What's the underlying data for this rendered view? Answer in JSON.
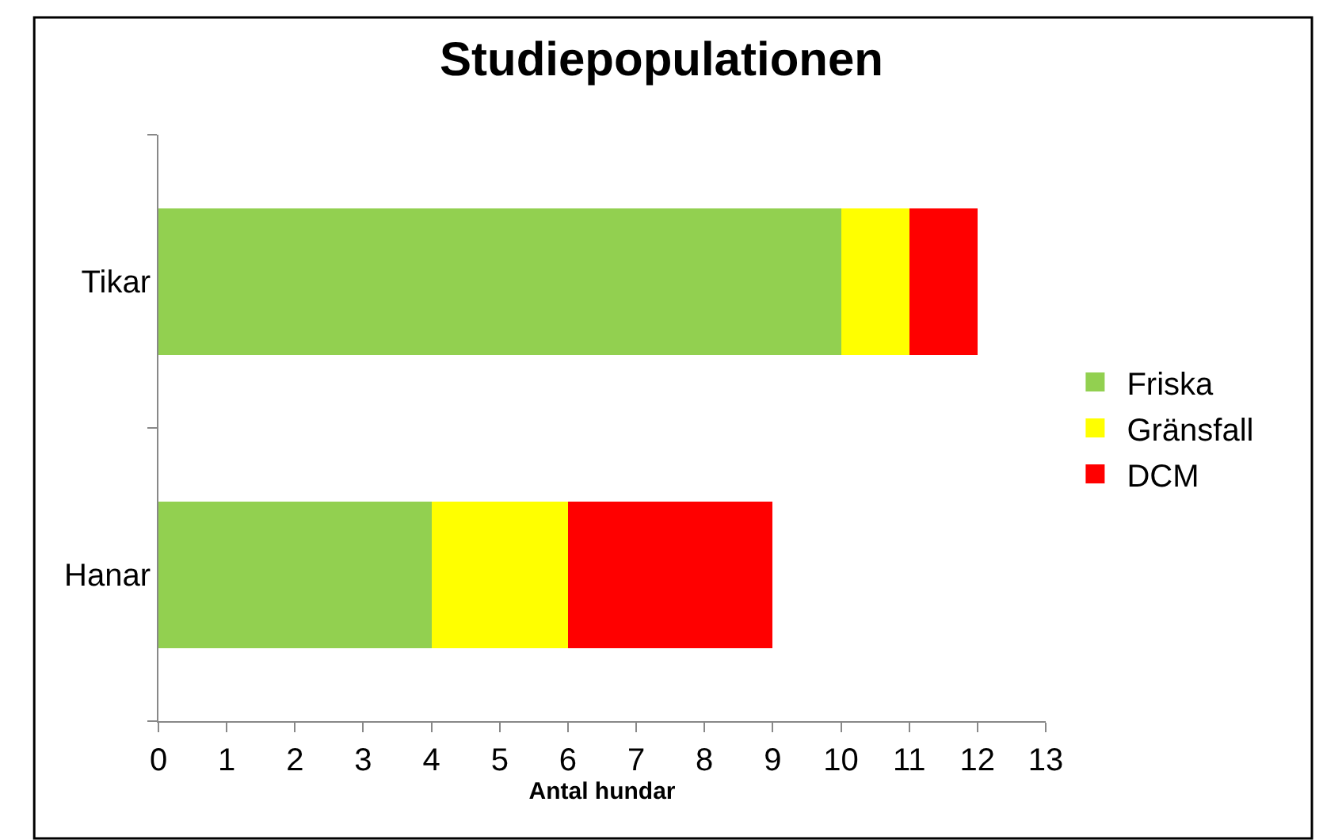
{
  "chart_data": {
    "type": "bar",
    "orientation": "horizontal",
    "stacked": true,
    "title": "Studiepopulationen",
    "xlabel": "Antal hundar",
    "categories": [
      "Tikar",
      "Hanar"
    ],
    "series": [
      {
        "name": "Friska",
        "color": "#92d050",
        "values": [
          10,
          4
        ]
      },
      {
        "name": "Gränsfall",
        "color": "#ffff00",
        "values": [
          1,
          2
        ]
      },
      {
        "name": "DCM",
        "color": "#ff0000",
        "values": [
          1,
          3
        ]
      }
    ],
    "xlim": [
      0,
      13
    ],
    "xticks": [
      0,
      1,
      2,
      3,
      4,
      5,
      6,
      7,
      8,
      9,
      10,
      11,
      12,
      13
    ],
    "legend": "right"
  }
}
